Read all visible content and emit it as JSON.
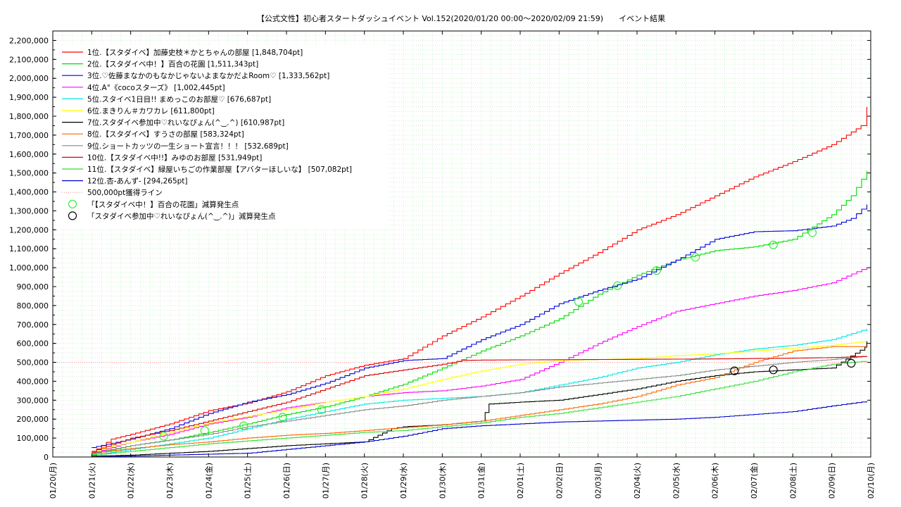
{
  "chart_data": {
    "type": "line",
    "title": "【公式文性】初心者スタートダッシュイベント Vol.152(2020/01/20 00:00〜2020/02/09 21:59)　　イベント結果",
    "xlabel": "",
    "ylabel": "",
    "ylim": [
      0,
      2250000
    ],
    "xlim": [
      0,
      21
    ],
    "grid": true,
    "legend_position": "top-left",
    "y_ticks": [
      0,
      100000,
      200000,
      300000,
      400000,
      500000,
      600000,
      700000,
      800000,
      900000,
      1000000,
      1100000,
      1200000,
      1300000,
      1400000,
      1500000,
      1600000,
      1700000,
      1800000,
      1900000,
      2000000,
      2100000,
      2200000
    ],
    "y_tick_labels": [
      "0",
      "100,000",
      "200,000",
      "300,000",
      "400,000",
      "500,000",
      "600,000",
      "700,000",
      "800,000",
      "900,000",
      "1,000,000",
      "1,100,000",
      "1,200,000",
      "1,300,000",
      "1,400,000",
      "1,500,000",
      "1,600,000",
      "1,700,000",
      "1,800,000",
      "1,900,000",
      "2,000,000",
      "2,100,000",
      "2,200,000"
    ],
    "x_tick_labels": [
      "01/20(月)",
      "01/21(火)",
      "01/22(水)",
      "01/23(木)",
      "01/24(金)",
      "01/25(土)",
      "01/26(日)",
      "01/27(月)",
      "01/28(火)",
      "01/29(水)",
      "01/30(木)",
      "01/31(金)",
      "02/01(土)",
      "02/02(日)",
      "02/03(月)",
      "02/04(火)",
      "02/05(水)",
      "02/06(木)",
      "02/07(金)",
      "02/08(土)",
      "02/09(日)",
      "02/10(月)"
    ],
    "series": [
      {
        "name": "1位.【スタダイベ】加藤史枝＊かとちゃんの部屋 [1,848,704pt]",
        "color": "#ff0000",
        "x": [
          1,
          1.5,
          2,
          3,
          4,
          5,
          6,
          7,
          8,
          9,
          10,
          11,
          12,
          13,
          14,
          15,
          16,
          17,
          18,
          19,
          20,
          20.75,
          20.9
        ],
        "y": [
          25000,
          95000,
          120000,
          175000,
          245000,
          285000,
          345000,
          430000,
          485000,
          520000,
          640000,
          740000,
          850000,
          970000,
          1080000,
          1200000,
          1280000,
          1380000,
          1480000,
          1560000,
          1650000,
          1750000,
          1848704
        ]
      },
      {
        "name": "2位.【スタダイベ中！】百合の花園 [1,511,343pt]",
        "color": "#00dd00",
        "x": [
          1,
          2,
          3,
          4,
          5,
          6,
          7,
          8,
          9,
          10,
          11,
          12,
          13,
          14,
          15,
          16,
          17,
          18,
          19,
          20,
          20.5,
          20.9
        ],
        "y": [
          15000,
          60000,
          90000,
          130000,
          175000,
          225000,
          265000,
          320000,
          385000,
          470000,
          560000,
          640000,
          730000,
          860000,
          960000,
          1040000,
          1090000,
          1110000,
          1150000,
          1280000,
          1380000,
          1511343
        ]
      },
      {
        "name": "3位.♡佐藤まなかのもなかじゃないよまなかだよRoom♡ [1,333,562pt]",
        "color": "#0000dd",
        "x": [
          1,
          2,
          3,
          4,
          5,
          6,
          7,
          8,
          9,
          10,
          11,
          12,
          13,
          14,
          15,
          16,
          17,
          18,
          19,
          20,
          20.5,
          20.9
        ],
        "y": [
          50000,
          95000,
          150000,
          230000,
          290000,
          330000,
          390000,
          470000,
          510000,
          520000,
          620000,
          700000,
          810000,
          880000,
          940000,
          1040000,
          1150000,
          1190000,
          1195000,
          1220000,
          1260000,
          1333562
        ]
      },
      {
        "name": "4位.A°《cocoスターズ》 [1,002,445pt]",
        "color": "#ff00ff",
        "x": [
          1,
          2,
          3,
          4,
          5,
          6,
          7,
          8,
          9,
          10,
          11,
          12,
          13,
          14,
          15,
          16,
          17,
          18,
          19,
          20,
          20.9
        ],
        "y": [
          20000,
          80000,
          120000,
          175000,
          210000,
          260000,
          290000,
          320000,
          340000,
          350000,
          375000,
          410000,
          500000,
          600000,
          690000,
          770000,
          810000,
          850000,
          880000,
          920000,
          1002445
        ]
      },
      {
        "name": "5位.スタイベ1日目!! まめっこのお部屋♡ [676,687pt]",
        "color": "#00e6e6",
        "x": [
          1,
          2,
          3,
          4,
          5,
          6,
          7,
          8,
          9,
          10,
          11,
          12,
          13,
          14,
          15,
          16,
          17,
          18,
          19,
          20,
          20.9
        ],
        "y": [
          10000,
          40000,
          70000,
          100000,
          150000,
          200000,
          240000,
          280000,
          300000,
          310000,
          320000,
          340000,
          380000,
          420000,
          470000,
          500000,
          540000,
          570000,
          590000,
          620000,
          676687
        ]
      },
      {
        "name": "6位.まきりん＃カワカレ [611,800pt]",
        "color": "#ffff00",
        "x": [
          1,
          2,
          3,
          4,
          5,
          6,
          7,
          8,
          9,
          10,
          11,
          12,
          13,
          14,
          15,
          16,
          17,
          18,
          19,
          20,
          20.9
        ],
        "y": [
          30000,
          80000,
          130000,
          180000,
          215000,
          250000,
          290000,
          320000,
          360000,
          410000,
          455000,
          490000,
          510000,
          515000,
          520000,
          535000,
          545000,
          560000,
          575000,
          590000,
          611800
        ]
      },
      {
        "name": "7位.スタダイベ参加中♡れいなぴょん(^‿.^) [610,987pt]",
        "color": "#000000",
        "x": [
          1,
          2,
          3,
          4,
          5,
          6,
          7,
          8,
          8.7,
          9,
          10,
          11,
          11.2,
          12,
          13,
          14,
          15,
          16,
          17,
          18,
          19,
          20,
          20.85,
          20.9
        ],
        "y": [
          5000,
          10000,
          20000,
          30000,
          45000,
          60000,
          70000,
          80000,
          150000,
          160000,
          170000,
          190000,
          280000,
          290000,
          300000,
          330000,
          360000,
          400000,
          430000,
          450000,
          460000,
          470000,
          580000,
          610987
        ]
      },
      {
        "name": "8位.【スタダイベ】すうさの部屋 [583,324pt]",
        "color": "#ff6600",
        "x": [
          1,
          2,
          3,
          4,
          5,
          6,
          7,
          8,
          9,
          10,
          11,
          12,
          13,
          14,
          15,
          16,
          17,
          18,
          19,
          20,
          20.9
        ],
        "y": [
          20000,
          45000,
          65000,
          80000,
          100000,
          115000,
          125000,
          140000,
          155000,
          170000,
          190000,
          220000,
          250000,
          280000,
          320000,
          380000,
          420000,
          500000,
          560000,
          583000,
          583324
        ]
      },
      {
        "name": "9位.ショートカッツの一生ショート宣言！！！ [532,689pt]",
        "color": "#888888",
        "x": [
          1,
          2,
          3,
          4,
          5,
          6,
          7,
          8,
          9,
          10,
          11,
          12,
          13,
          14,
          15,
          16,
          17,
          18,
          19,
          20,
          20.9
        ],
        "y": [
          20000,
          60000,
          90000,
          120000,
          160000,
          190000,
          220000,
          250000,
          270000,
          300000,
          320000,
          340000,
          370000,
          390000,
          410000,
          430000,
          460000,
          480000,
          500000,
          515000,
          532689
        ]
      },
      {
        "name": "10位.【スタダイベ中!!】みゆのお部屋 [531,949pt]",
        "color": "#dd0000",
        "x": [
          1,
          2,
          3,
          4,
          5,
          6,
          7,
          8,
          9,
          10,
          10.5,
          11,
          12,
          13,
          14,
          15,
          16,
          17,
          18,
          19,
          20,
          20.9
        ],
        "y": [
          30000,
          100000,
          140000,
          190000,
          240000,
          290000,
          360000,
          430000,
          460000,
          490000,
          510000,
          512000,
          513000,
          514000,
          515000,
          516000,
          517000,
          518000,
          520000,
          522000,
          525000,
          531949
        ]
      },
      {
        "name": "11位.【スタダイベ】緑屋いちごの作業部屋【アバターほしいな】 [507,082pt]",
        "color": "#33dd33",
        "x": [
          1,
          2,
          3,
          4,
          5,
          6,
          7,
          8,
          9,
          10,
          11,
          12,
          13,
          14,
          15,
          16,
          17,
          18,
          19,
          20,
          20.9
        ],
        "y": [
          10000,
          30000,
          50000,
          70000,
          85000,
          100000,
          115000,
          130000,
          140000,
          160000,
          180000,
          210000,
          230000,
          260000,
          290000,
          320000,
          360000,
          400000,
          450000,
          490000,
          507082
        ]
      },
      {
        "name": "12位.杏-あんず- [294,265pt]",
        "color": "#0000cc",
        "x": [
          1,
          2,
          3,
          4,
          5,
          6,
          7,
          8,
          9,
          10,
          11,
          12,
          13,
          14,
          15,
          16,
          17,
          18,
          19,
          20,
          20.9
        ],
        "y": [
          0,
          5000,
          10000,
          15000,
          20000,
          40000,
          60000,
          80000,
          110000,
          150000,
          165000,
          175000,
          185000,
          190000,
          195000,
          200000,
          210000,
          225000,
          240000,
          270000,
          294265
        ]
      }
    ],
    "reference_line": {
      "name": "500,000pt獲得ライン",
      "value": 500000,
      "color": "#ff8888"
    },
    "markers": [
      {
        "name": "「【スタダイベ中！】百合の花園」減算発生点",
        "color": "#33ee33",
        "x": [
          2.85,
          3.9,
          4.9,
          5.9,
          6.9,
          13.5,
          14.5,
          15.5,
          16.5,
          18.5,
          19.5
        ],
        "y": [
          110000,
          140000,
          165000,
          210000,
          250000,
          820000,
          905000,
          985000,
          1055000,
          1120000,
          1185000
        ]
      },
      {
        "name": "「スタダイベ参加中♡れいなぴょん(^‿.^)」減算発生点",
        "color": "#000000",
        "x": [
          17.5,
          18.5,
          20.5
        ],
        "y": [
          455000,
          460000,
          495000
        ]
      }
    ]
  }
}
